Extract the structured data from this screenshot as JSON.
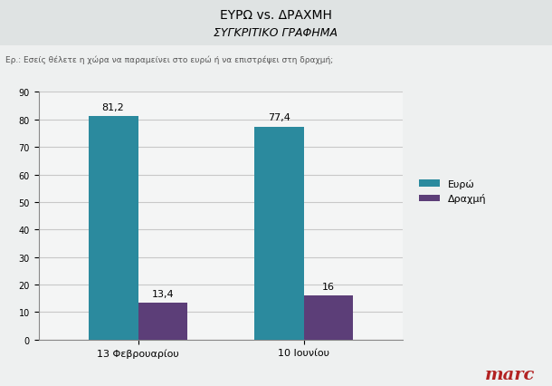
{
  "chart_data": {
    "type": "bar",
    "title": "ΕΥΡΩ vs. ΔΡΑΧΜΗ",
    "subtitle": "ΣΥΓΚΡΙΤΙΚΟ ΓΡΑΦΗΜΑ",
    "annotations": [
      "Ερ.: Εσείς θέλετε η χώρα να παραμείνει στο ευρώ ή να επιστρέψει στη δραχμή;",
      "marc"
    ],
    "categories": [
      "13 Φεβρουαρίου",
      "10 Ιουνίου"
    ],
    "series": [
      {
        "name": "Ευρώ",
        "color": "#2b8a9e",
        "values": [
          81.2,
          77.4
        ],
        "value_labels": [
          "81,2",
          "77,4"
        ]
      },
      {
        "name": "Δραχμή",
        "color": "#5c3e78",
        "values": [
          13.4,
          16
        ],
        "value_labels": [
          "13,4",
          "16"
        ]
      }
    ],
    "ylim": [
      0,
      90
    ],
    "yticks": [
      0,
      10,
      20,
      30,
      40,
      50,
      60,
      70,
      80,
      90
    ],
    "grid": true,
    "legend": "right",
    "data_labels": true
  }
}
